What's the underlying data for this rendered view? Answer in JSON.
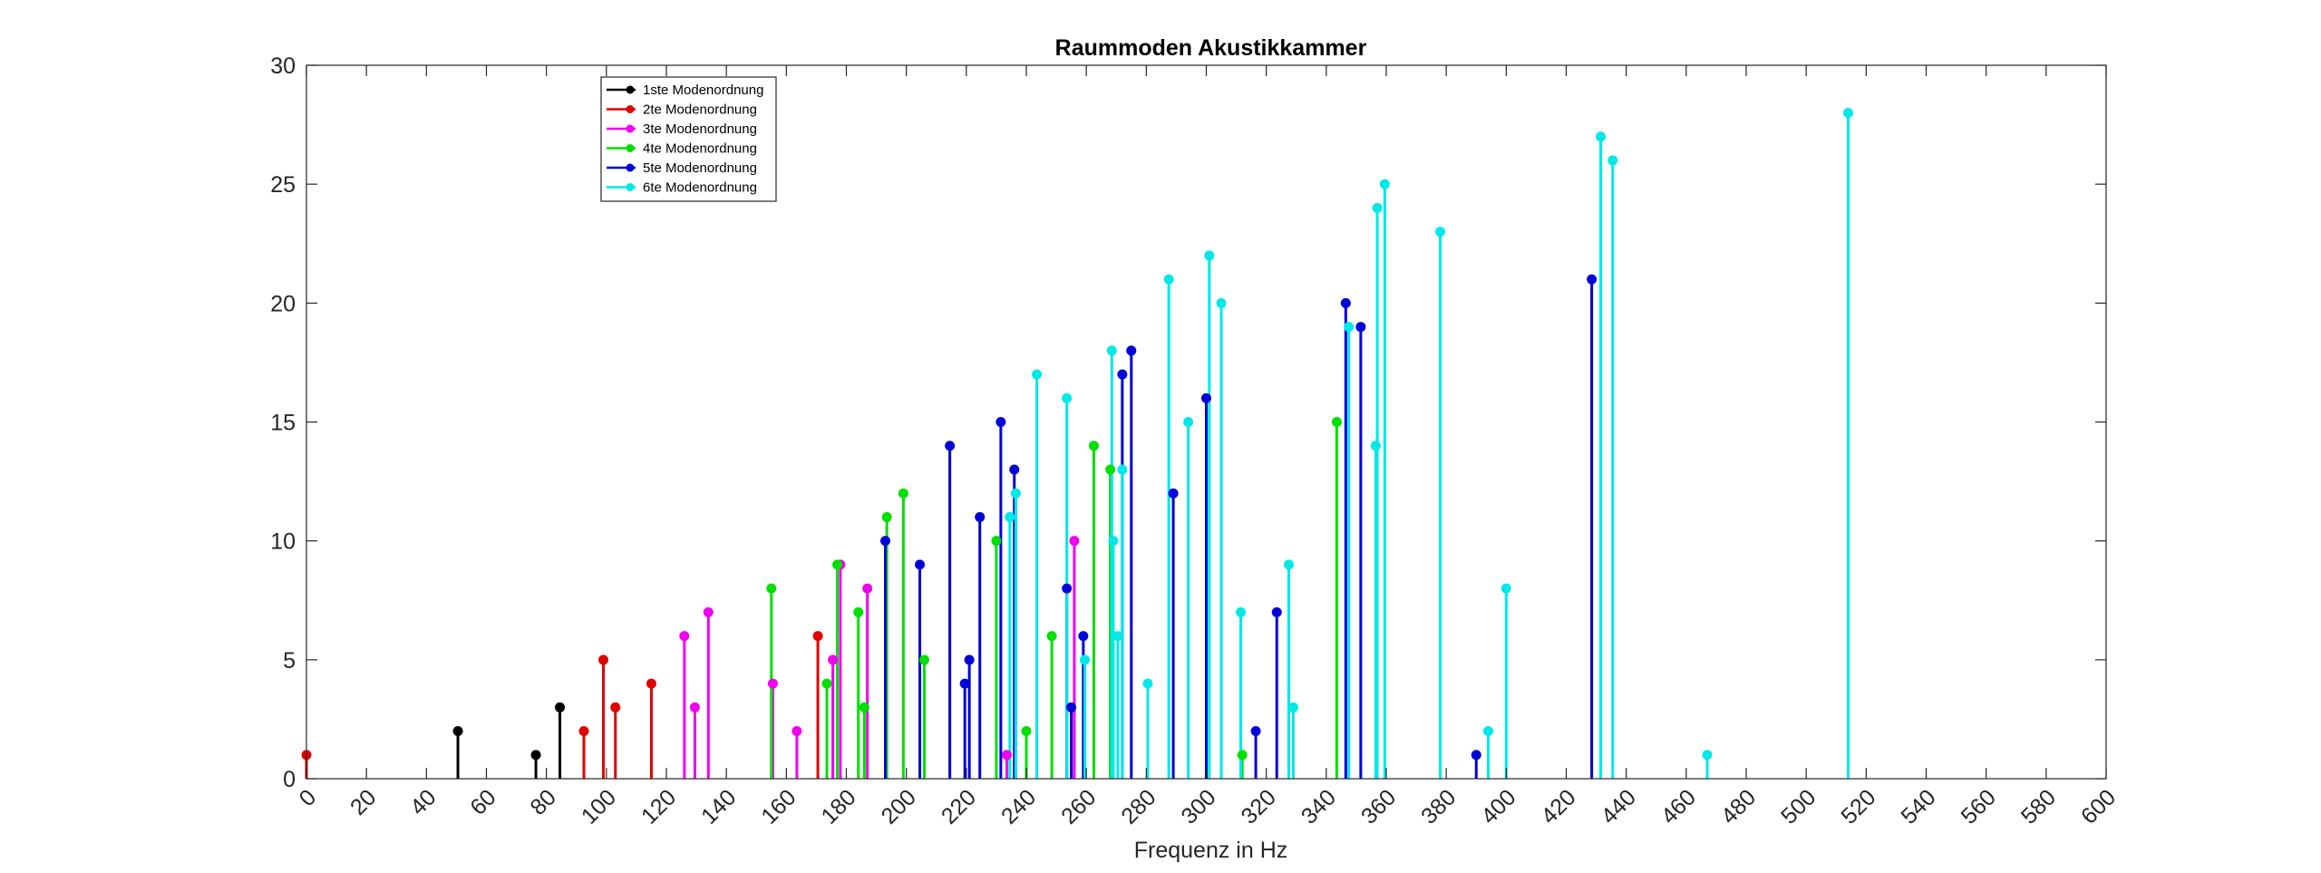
{
  "chart_data": {
    "type": "stem",
    "title": "Raummoden Akustikkammer",
    "xlabel": "Frequenz in Hz",
    "ylabel": "",
    "xlim": [
      0,
      600
    ],
    "ylim": [
      0,
      30
    ],
    "xticks": [
      0,
      20,
      40,
      60,
      80,
      100,
      120,
      140,
      160,
      180,
      200,
      220,
      240,
      260,
      280,
      300,
      320,
      340,
      360,
      380,
      400,
      420,
      440,
      460,
      480,
      500,
      520,
      540,
      560,
      580,
      600
    ],
    "yticks": [
      0,
      5,
      10,
      15,
      20,
      25,
      30
    ],
    "grid": false,
    "legend_position": "top-left",
    "series": [
      {
        "name": "1ste Modenordnung",
        "color": "#000000",
        "x": [
          50.5,
          76.5,
          84.5
        ],
        "y": [
          2,
          1,
          3
        ]
      },
      {
        "name": "2te Modenordnung",
        "color": "#e00000",
        "x": [
          0,
          92.5,
          99,
          103,
          115,
          170.5
        ],
        "y": [
          1,
          2,
          5,
          3,
          4,
          6
        ]
      },
      {
        "name": "3te Modenordnung",
        "color": "#f000f0",
        "x": [
          126,
          129.5,
          134,
          155.5,
          163.5,
          175.5,
          178,
          187,
          233.5,
          256
        ],
        "y": [
          6,
          3,
          7,
          4,
          2,
          5,
          9,
          8,
          1,
          10
        ]
      },
      {
        "name": "4te Modenordnung",
        "color": "#00e000",
        "x": [
          155,
          173.5,
          177,
          184,
          186,
          193.5,
          199,
          206,
          230,
          240,
          248.5,
          262.5,
          268,
          312,
          343.5
        ],
        "y": [
          8,
          4,
          9,
          7,
          3,
          11,
          12,
          5,
          10,
          2,
          6,
          14,
          13,
          1,
          15
        ]
      },
      {
        "name": "5te Modenordnung",
        "color": "#0000d8",
        "x": [
          193,
          204.5,
          214.5,
          219.5,
          221,
          224.5,
          231.5,
          236,
          253.5,
          255,
          259,
          272,
          275,
          289,
          300,
          316.5,
          323.5,
          346.5,
          351.5,
          390,
          428.5
        ],
        "y": [
          10,
          9,
          14,
          4,
          5,
          11,
          15,
          13,
          8,
          3,
          6,
          17,
          18,
          12,
          16,
          2,
          7,
          20,
          19,
          1,
          21
        ]
      },
      {
        "name": "6te Modenordnung",
        "color": "#00e8e8",
        "x": [
          234.5,
          236.5,
          243.5,
          253.5,
          259.5,
          268.5,
          270.5,
          272,
          269,
          280.5,
          287.5,
          294,
          301,
          305,
          311.5,
          327.5,
          329,
          347.5,
          356.5,
          357,
          359.5,
          378,
          394,
          400,
          467,
          514,
          431.5,
          435.5
        ],
        "y": [
          11,
          12,
          17,
          16,
          5,
          18,
          6,
          13,
          10,
          4,
          21,
          15,
          22,
          20,
          7,
          9,
          3,
          19,
          14,
          24,
          25,
          23,
          2,
          8,
          1,
          28,
          27,
          26
        ]
      }
    ]
  }
}
